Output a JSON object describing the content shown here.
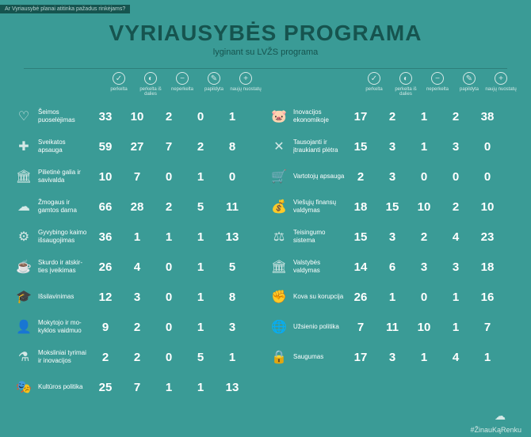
{
  "topbar": "Ar Vyriausybė planai atitinka pažadus rinkėjams?",
  "title": "VYRIAUSYBĖS PROGRAMA",
  "subtitle": "lyginant su LVŽS programa",
  "columnHeaders": [
    {
      "glyph": "✓",
      "label": "perkelta"
    },
    {
      "glyph": "◐",
      "label": "perkelta iš dalies"
    },
    {
      "glyph": "−",
      "label": "neperkelta"
    },
    {
      "glyph": "✎",
      "label": "papildyta"
    },
    {
      "glyph": "+",
      "label": "naujų nuostatų"
    }
  ],
  "left": [
    {
      "icon": "♡",
      "label": "Šeimos puoselėjimas",
      "v": [
        33,
        10,
        2,
        0,
        1
      ]
    },
    {
      "icon": "✚",
      "label": "Sveikatos apsauga",
      "v": [
        59,
        27,
        7,
        2,
        8
      ]
    },
    {
      "icon": "🏛",
      "label": "Pilietinė galia ir savivalda",
      "v": [
        10,
        7,
        0,
        1,
        0
      ]
    },
    {
      "icon": "☁",
      "label": "Žmogaus ir gamtos darna",
      "v": [
        66,
        28,
        2,
        5,
        11
      ]
    },
    {
      "icon": "⚙",
      "label": "Gyvybingo kaimo išsaugojimas",
      "v": [
        36,
        1,
        1,
        1,
        13
      ]
    },
    {
      "icon": "☕",
      "label": "Skurdo ir atskir- ties įveikimas",
      "v": [
        26,
        4,
        0,
        1,
        5
      ]
    },
    {
      "icon": "🎓",
      "label": "Išsilavinimas",
      "v": [
        12,
        3,
        0,
        1,
        8
      ]
    },
    {
      "icon": "👤",
      "label": "Mokytojo ir mo- kyklos vaidmuo",
      "v": [
        9,
        2,
        0,
        1,
        3
      ]
    },
    {
      "icon": "⚗",
      "label": "Moksliniai tyrimai ir inovacijos",
      "v": [
        2,
        2,
        0,
        5,
        1
      ]
    },
    {
      "icon": "🎭",
      "label": "Kultūros politika",
      "v": [
        25,
        7,
        1,
        1,
        13
      ]
    }
  ],
  "right": [
    {
      "icon": "🐷",
      "label": "Inovacijos ekonomikoje",
      "v": [
        17,
        2,
        1,
        2,
        38
      ]
    },
    {
      "icon": "✕",
      "label": "Tausojanti ir įtraukianti plėtra",
      "v": [
        15,
        3,
        1,
        3,
        0
      ]
    },
    {
      "icon": "🛒",
      "label": "Vartotojų apsauga",
      "v": [
        2,
        3,
        0,
        0,
        0
      ]
    },
    {
      "icon": "💰",
      "label": "Viešųjų finansų valdymas",
      "v": [
        18,
        15,
        10,
        2,
        10
      ]
    },
    {
      "icon": "⚖",
      "label": "Teisingumo sistema",
      "v": [
        15,
        3,
        2,
        4,
        23
      ]
    },
    {
      "icon": "🏛",
      "label": "Valstybės valdymas",
      "v": [
        14,
        6,
        3,
        3,
        18
      ]
    },
    {
      "icon": "✊",
      "label": "Kova su korupcija",
      "v": [
        26,
        1,
        0,
        1,
        16
      ]
    },
    {
      "icon": "🌐",
      "label": "Užsienio politika",
      "v": [
        7,
        11,
        10,
        1,
        7
      ]
    },
    {
      "icon": "🔒",
      "label": "Saugumas",
      "v": [
        17,
        3,
        1,
        4,
        1
      ]
    }
  ],
  "hashtag": "#ŽinauKąRenku"
}
